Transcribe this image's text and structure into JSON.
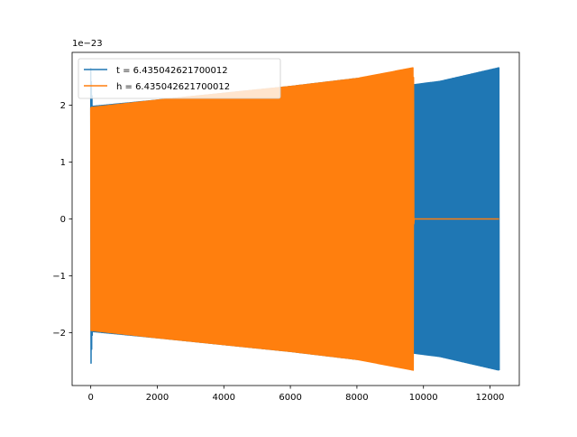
{
  "chart_data": {
    "type": "line",
    "title": "",
    "xlabel": "",
    "ylabel": "",
    "offset_text": "1e−23",
    "xlim": [
      -560,
      12880
    ],
    "ylim": [
      -2.93,
      2.93
    ],
    "x_ticks": [
      0,
      2000,
      4000,
      6000,
      8000,
      10000,
      12000
    ],
    "x_tick_labels": [
      "0",
      "2000",
      "4000",
      "6000",
      "8000",
      "10000",
      "12000"
    ],
    "y_ticks": [
      -2,
      -1,
      0,
      1,
      2
    ],
    "y_tick_labels": [
      "−2",
      "−1",
      "0",
      "1",
      "2"
    ],
    "grid": false,
    "legend_position": "upper-left",
    "series": [
      {
        "name": "t = 6.435042621700012",
        "color": "#1f77b4",
        "description": "oscillating waveform, envelope amplitude",
        "x": [
          0,
          50,
          2000,
          4000,
          6000,
          8000,
          9700,
          10500,
          12280
        ],
        "envelope": [
          2.66,
          1.98,
          2.09,
          2.21,
          2.33,
          2.47,
          2.36,
          2.42,
          2.66
        ]
      },
      {
        "name": "h = 6.435042621700012",
        "color": "#ff7f0e",
        "description": "oscillating waveform, envelope amplitude; zero after x=9700",
        "x": [
          0,
          2000,
          4000,
          6000,
          8000,
          9700,
          9710,
          12280
        ],
        "envelope": [
          1.96,
          2.09,
          2.21,
          2.33,
          2.47,
          2.66,
          0.0,
          0.0
        ]
      }
    ]
  }
}
